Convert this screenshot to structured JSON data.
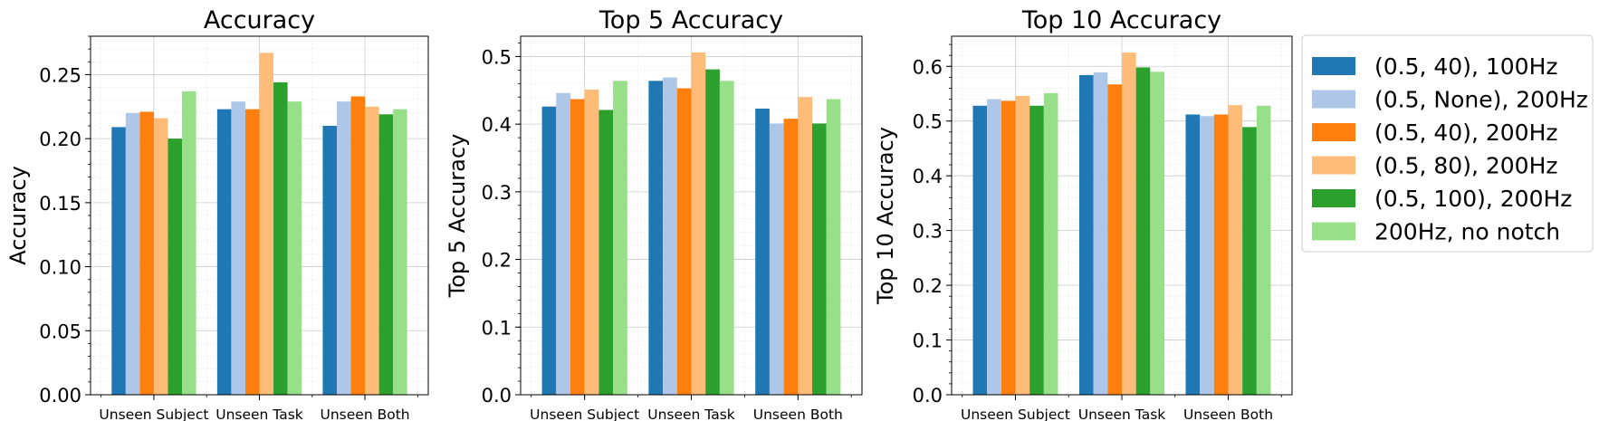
{
  "chart_data": [
    {
      "type": "bar",
      "title": "Accuracy",
      "ylabel": "Accuracy",
      "xlabel": "",
      "ylim": [
        0,
        0.28
      ],
      "yticks": [
        0.0,
        0.05,
        0.1,
        0.15,
        0.2,
        0.25
      ],
      "ytick_labels": [
        "0.00",
        "0.05",
        "0.10",
        "0.15",
        "0.20",
        "0.25"
      ],
      "grid": true,
      "categories": [
        "Unseen Subject",
        "Unseen Task",
        "Unseen Both"
      ],
      "series": [
        {
          "name": "(0.5, 40), 100Hz",
          "values": [
            0.209,
            0.223,
            0.21
          ]
        },
        {
          "name": "(0.5, None), 200Hz",
          "values": [
            0.22,
            0.229,
            0.229
          ]
        },
        {
          "name": "(0.5, 40), 200Hz",
          "values": [
            0.221,
            0.223,
            0.233
          ]
        },
        {
          "name": "(0.5, 80), 200Hz",
          "values": [
            0.216,
            0.267,
            0.225
          ]
        },
        {
          "name": "(0.5, 100), 200Hz",
          "values": [
            0.2,
            0.244,
            0.219
          ]
        },
        {
          "name": "200Hz, no notch",
          "values": [
            0.237,
            0.229,
            0.223
          ]
        }
      ]
    },
    {
      "type": "bar",
      "title": "Top 5 Accuracy",
      "ylabel": "Top 5 Accuracy",
      "xlabel": "",
      "ylim": [
        0,
        0.53
      ],
      "yticks": [
        0.0,
        0.1,
        0.2,
        0.3,
        0.4,
        0.5
      ],
      "ytick_labels": [
        "0.0",
        "0.1",
        "0.2",
        "0.3",
        "0.4",
        "0.5"
      ],
      "grid": true,
      "categories": [
        "Unseen Subject",
        "Unseen Task",
        "Unseen Both"
      ],
      "series": [
        {
          "name": "(0.5, 40), 100Hz",
          "values": [
            0.426,
            0.464,
            0.423
          ]
        },
        {
          "name": "(0.5, None), 200Hz",
          "values": [
            0.446,
            0.469,
            0.401
          ]
        },
        {
          "name": "(0.5, 40), 200Hz",
          "values": [
            0.437,
            0.453,
            0.408
          ]
        },
        {
          "name": "(0.5, 80), 200Hz",
          "values": [
            0.451,
            0.506,
            0.44
          ]
        },
        {
          "name": "(0.5, 100), 200Hz",
          "values": [
            0.421,
            0.481,
            0.401
          ]
        },
        {
          "name": "200Hz, no notch",
          "values": [
            0.464,
            0.464,
            0.437
          ]
        }
      ]
    },
    {
      "type": "bar",
      "title": "Top 10 Accuracy",
      "ylabel": "Top 10 Accuracy",
      "xlabel": "",
      "ylim": [
        0,
        0.655
      ],
      "yticks": [
        0.0,
        0.1,
        0.2,
        0.3,
        0.4,
        0.5,
        0.6
      ],
      "ytick_labels": [
        "0.0",
        "0.1",
        "0.2",
        "0.3",
        "0.4",
        "0.5",
        "0.6"
      ],
      "grid": true,
      "categories": [
        "Unseen Subject",
        "Unseen Task",
        "Unseen Both"
      ],
      "series": [
        {
          "name": "(0.5, 40), 100Hz",
          "values": [
            0.528,
            0.584,
            0.512
          ]
        },
        {
          "name": "(0.5, None), 200Hz",
          "values": [
            0.54,
            0.589,
            0.509
          ]
        },
        {
          "name": "(0.5, 40), 200Hz",
          "values": [
            0.537,
            0.567,
            0.512
          ]
        },
        {
          "name": "(0.5, 80), 200Hz",
          "values": [
            0.546,
            0.625,
            0.529
          ]
        },
        {
          "name": "(0.5, 100), 200Hz",
          "values": [
            0.528,
            0.598,
            0.489
          ]
        },
        {
          "name": "200Hz, no notch",
          "values": [
            0.551,
            0.59,
            0.528
          ]
        }
      ]
    }
  ],
  "legend": {
    "placement": "right",
    "entries": [
      "(0.5, 40), 100Hz",
      "(0.5, None), 200Hz",
      "(0.5, 40), 200Hz",
      "(0.5, 80), 200Hz",
      "(0.5, 100), 200Hz",
      "200Hz, no notch"
    ]
  },
  "colors": [
    "#1f77b4",
    "#aec7e8",
    "#ff7f0e",
    "#ffbb78",
    "#2ca02c",
    "#98df8a"
  ]
}
